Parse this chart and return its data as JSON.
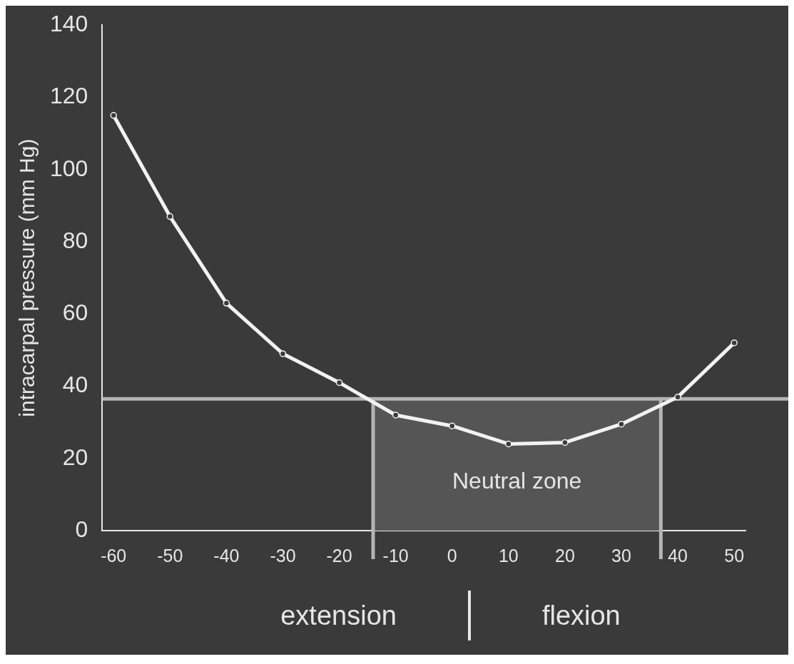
{
  "chart_data": {
    "type": "line",
    "ylabel": "intracarpal pressure (mm Hg)",
    "x": [
      -60,
      -50,
      -40,
      -30,
      -20,
      -10,
      0,
      10,
      20,
      30,
      40,
      50
    ],
    "series": [
      {
        "color": "#f2f2f2",
        "values": [
          115,
          87,
          63,
          49,
          41,
          32,
          29,
          24,
          24.4,
          29.5,
          37,
          52
        ]
      }
    ],
    "xlim": [
      -62,
      52
    ],
    "ylim": [
      0,
      140
    ],
    "xticks": [
      -60,
      -50,
      -40,
      -30,
      -20,
      -10,
      0,
      10,
      20,
      30,
      40,
      50
    ],
    "yticks": [
      0,
      20,
      40,
      60,
      80,
      100,
      120,
      140
    ],
    "marker": "circle",
    "ref_lines": [
      {
        "axis": "y",
        "value": 36.5,
        "color": "#b5b5b5"
      },
      {
        "axis": "x",
        "value": -14,
        "color": "#b5b5b5"
      },
      {
        "axis": "x",
        "value": 37,
        "color": "#b5b5b5"
      }
    ],
    "bands": [
      {
        "axis": "x",
        "from": -14,
        "to": 37,
        "label": "Neutral zone",
        "color": "#555555"
      }
    ],
    "annotations": [
      "extension",
      "flexion"
    ]
  }
}
